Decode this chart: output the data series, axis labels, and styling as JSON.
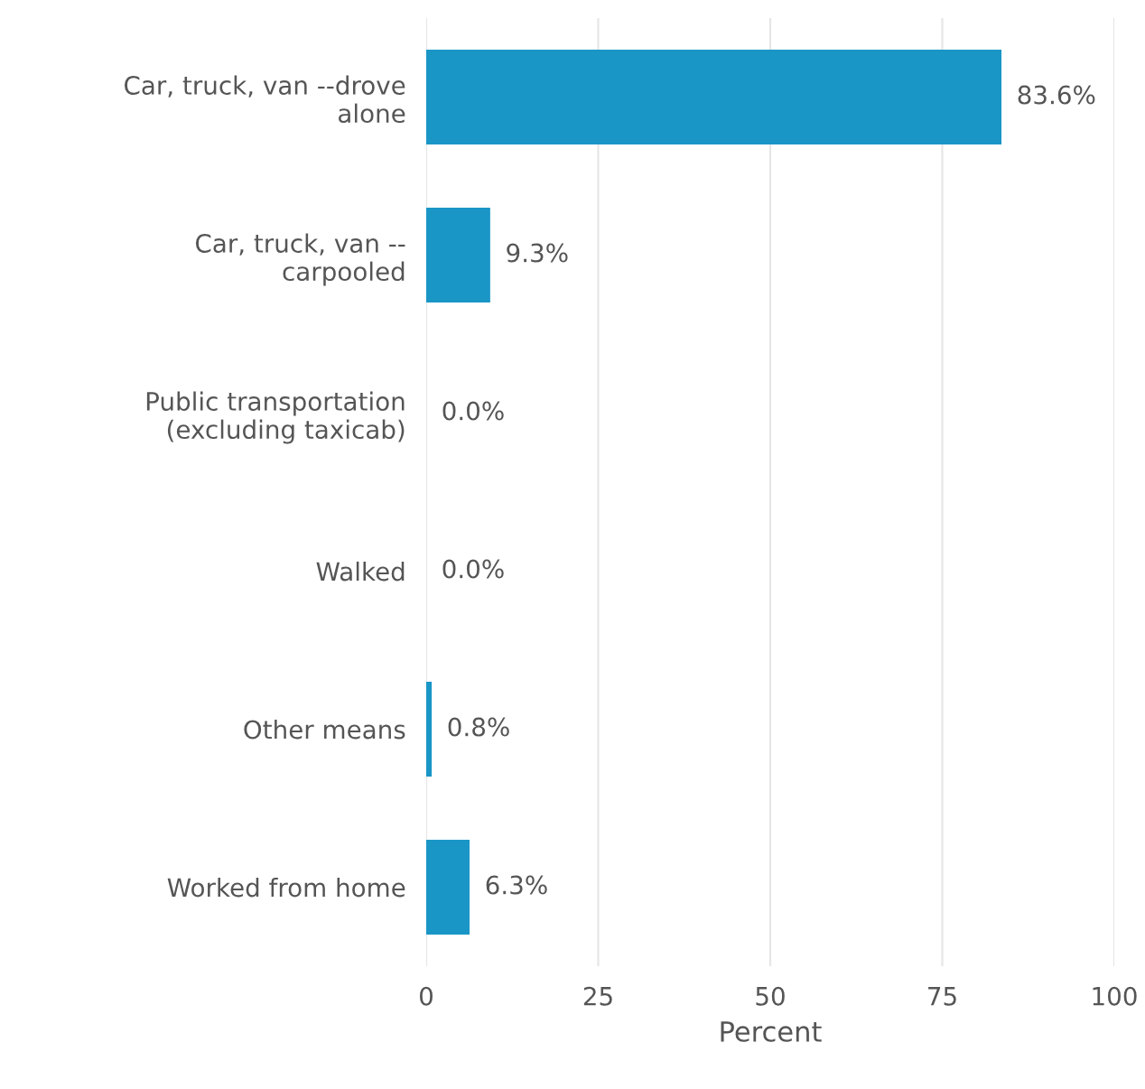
{
  "chart_data": {
    "type": "bar",
    "orientation": "horizontal",
    "xlabel": "Percent",
    "categories": [
      "Car, truck, van --drove\nalone",
      "Car, truck, van --\ncarpooled",
      "Public transportation\n(excluding taxicab)",
      "Walked",
      "Other means",
      "Worked from home"
    ],
    "values": [
      83.6,
      9.3,
      0.0,
      0.0,
      0.8,
      6.3
    ],
    "value_labels": [
      "83.6%",
      "9.3%",
      "0.0%",
      "0.0%",
      "0.8%",
      "6.3%"
    ],
    "color": "#1a96c6",
    "xlim": [
      0,
      100
    ],
    "xticks": [
      0,
      25,
      50,
      75,
      100
    ],
    "grid": "x",
    "legend": false
  }
}
